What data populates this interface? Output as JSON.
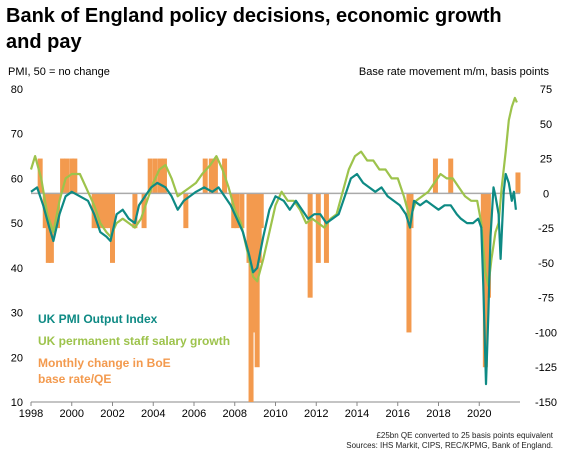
{
  "chart_data": {
    "type": "line",
    "title": "Bank of England policy decisions, economic growth and pay",
    "left_axis_label": "PMI, 50 = no change",
    "right_axis_label": "Base rate movement m/m, basis points",
    "x_ticks": [
      "1998",
      "2000",
      "2002",
      "2004",
      "2006",
      "2008",
      "2010",
      "2012",
      "2014",
      "2016",
      "2018",
      "2020"
    ],
    "xlim": [
      1998,
      2022
    ],
    "left_ylim": [
      10,
      80
    ],
    "left_ticks": [
      "10",
      "20",
      "30",
      "40",
      "50",
      "60",
      "70",
      "80"
    ],
    "right_ylim": [
      -150,
      75
    ],
    "right_ticks": [
      "75",
      "50",
      "25",
      "0",
      "-25",
      "-50",
      "-75",
      "-100",
      "-125",
      "-150"
    ],
    "reference_line": {
      "axis": "right",
      "value": 0
    },
    "series": [
      {
        "name": "UK PMI Output Index",
        "axis": "left",
        "color": "#0e8a84",
        "points": [
          [
            1998.0,
            57
          ],
          [
            1998.3,
            58
          ],
          [
            1998.6,
            54
          ],
          [
            1998.9,
            49
          ],
          [
            1999.1,
            46
          ],
          [
            1999.4,
            52
          ],
          [
            1999.7,
            56
          ],
          [
            2000.0,
            57
          ],
          [
            2000.4,
            56
          ],
          [
            2000.8,
            55
          ],
          [
            2001.1,
            52
          ],
          [
            2001.4,
            48
          ],
          [
            2001.7,
            47
          ],
          [
            2001.9,
            46
          ],
          [
            2002.2,
            52
          ],
          [
            2002.5,
            53
          ],
          [
            2002.8,
            51
          ],
          [
            2003.1,
            50
          ],
          [
            2003.3,
            54
          ],
          [
            2003.6,
            56
          ],
          [
            2003.9,
            58
          ],
          [
            2004.2,
            59
          ],
          [
            2004.6,
            58
          ],
          [
            2004.9,
            56
          ],
          [
            2005.2,
            53
          ],
          [
            2005.5,
            55
          ],
          [
            2005.8,
            56
          ],
          [
            2006.1,
            57
          ],
          [
            2006.5,
            58
          ],
          [
            2006.9,
            57
          ],
          [
            2007.2,
            58
          ],
          [
            2007.5,
            56
          ],
          [
            2007.8,
            54
          ],
          [
            2008.1,
            51
          ],
          [
            2008.4,
            48
          ],
          [
            2008.7,
            43
          ],
          [
            2008.9,
            39
          ],
          [
            2009.1,
            40
          ],
          [
            2009.4,
            47
          ],
          [
            2009.7,
            53
          ],
          [
            2010.0,
            56
          ],
          [
            2010.4,
            55
          ],
          [
            2010.7,
            53
          ],
          [
            2011.0,
            55
          ],
          [
            2011.3,
            53
          ],
          [
            2011.6,
            51
          ],
          [
            2011.9,
            52
          ],
          [
            2012.2,
            52
          ],
          [
            2012.5,
            50
          ],
          [
            2012.8,
            51
          ],
          [
            2013.1,
            52
          ],
          [
            2013.4,
            56
          ],
          [
            2013.7,
            60
          ],
          [
            2014.0,
            61
          ],
          [
            2014.3,
            59
          ],
          [
            2014.6,
            58
          ],
          [
            2014.9,
            57
          ],
          [
            2015.2,
            58
          ],
          [
            2015.5,
            56
          ],
          [
            2015.8,
            55
          ],
          [
            2016.1,
            54
          ],
          [
            2016.4,
            52
          ],
          [
            2016.6,
            49
          ],
          [
            2016.8,
            55
          ],
          [
            2017.1,
            54
          ],
          [
            2017.4,
            55
          ],
          [
            2017.7,
            54
          ],
          [
            2018.0,
            53
          ],
          [
            2018.3,
            54
          ],
          [
            2018.6,
            54
          ],
          [
            2018.9,
            52
          ],
          [
            2019.1,
            51
          ],
          [
            2019.4,
            50
          ],
          [
            2019.7,
            50
          ],
          [
            2019.95,
            51
          ],
          [
            2020.1,
            49
          ],
          [
            2020.2,
            36
          ],
          [
            2020.33,
            14
          ],
          [
            2020.45,
            30
          ],
          [
            2020.55,
            47
          ],
          [
            2020.7,
            58
          ],
          [
            2020.8,
            56
          ],
          [
            2020.95,
            52
          ],
          [
            2021.05,
            42
          ],
          [
            2021.2,
            57
          ],
          [
            2021.3,
            61
          ],
          [
            2021.45,
            59
          ],
          [
            2021.6,
            55
          ],
          [
            2021.7,
            57
          ],
          [
            2021.8,
            53
          ]
        ]
      },
      {
        "name": "UK permanent staff salary growth",
        "axis": "left",
        "color": "#9dc34c",
        "points": [
          [
            1998.0,
            62
          ],
          [
            1998.2,
            65
          ],
          [
            1998.5,
            60
          ],
          [
            1998.8,
            52
          ],
          [
            1999.1,
            48
          ],
          [
            1999.4,
            55
          ],
          [
            1999.7,
            60
          ],
          [
            2000.0,
            61
          ],
          [
            2000.4,
            61
          ],
          [
            2000.8,
            57
          ],
          [
            2001.1,
            54
          ],
          [
            2001.4,
            50
          ],
          [
            2001.7,
            48
          ],
          [
            2001.9,
            47
          ],
          [
            2002.2,
            50
          ],
          [
            2002.5,
            51
          ],
          [
            2002.8,
            50
          ],
          [
            2003.1,
            49
          ],
          [
            2003.4,
            51
          ],
          [
            2003.7,
            55
          ],
          [
            2004.0,
            59
          ],
          [
            2004.3,
            62
          ],
          [
            2004.6,
            63
          ],
          [
            2004.9,
            60
          ],
          [
            2005.2,
            56
          ],
          [
            2005.5,
            57
          ],
          [
            2005.8,
            58
          ],
          [
            2006.1,
            59
          ],
          [
            2006.4,
            61
          ],
          [
            2006.8,
            63
          ],
          [
            2007.1,
            65
          ],
          [
            2007.4,
            62
          ],
          [
            2007.7,
            58
          ],
          [
            2008.0,
            53
          ],
          [
            2008.3,
            50
          ],
          [
            2008.6,
            44
          ],
          [
            2008.9,
            38
          ],
          [
            2009.1,
            37
          ],
          [
            2009.4,
            42
          ],
          [
            2009.7,
            48
          ],
          [
            2010.0,
            54
          ],
          [
            2010.3,
            57
          ],
          [
            2010.6,
            55
          ],
          [
            2010.9,
            55
          ],
          [
            2011.2,
            53
          ],
          [
            2011.5,
            50
          ],
          [
            2011.8,
            51
          ],
          [
            2012.1,
            50
          ],
          [
            2012.4,
            49
          ],
          [
            2012.7,
            51
          ],
          [
            2013.0,
            52
          ],
          [
            2013.3,
            57
          ],
          [
            2013.6,
            62
          ],
          [
            2013.9,
            65
          ],
          [
            2014.2,
            66
          ],
          [
            2014.5,
            64
          ],
          [
            2014.8,
            64
          ],
          [
            2015.1,
            62
          ],
          [
            2015.4,
            62
          ],
          [
            2015.7,
            60
          ],
          [
            2016.0,
            60
          ],
          [
            2016.3,
            56
          ],
          [
            2016.6,
            51
          ],
          [
            2016.9,
            55
          ],
          [
            2017.2,
            56
          ],
          [
            2017.5,
            57
          ],
          [
            2017.8,
            59
          ],
          [
            2018.1,
            61
          ],
          [
            2018.4,
            60
          ],
          [
            2018.7,
            60
          ],
          [
            2019.0,
            58
          ],
          [
            2019.3,
            56
          ],
          [
            2019.6,
            55
          ],
          [
            2019.9,
            55
          ],
          [
            2020.1,
            50
          ],
          [
            2020.3,
            39
          ],
          [
            2020.45,
            36
          ],
          [
            2020.6,
            42
          ],
          [
            2020.8,
            48
          ],
          [
            2020.95,
            50
          ],
          [
            2021.1,
            58
          ],
          [
            2021.3,
            66
          ],
          [
            2021.45,
            73
          ],
          [
            2021.6,
            76
          ],
          [
            2021.75,
            78
          ],
          [
            2021.85,
            77
          ]
        ]
      },
      {
        "name": "Monthly change in BoE base rate/QE",
        "axis": "right",
        "type": "bar",
        "color": "#f39a4e",
        "points": [
          [
            1998.45,
            25
          ],
          [
            1998.7,
            -25
          ],
          [
            1998.85,
            -50
          ],
          [
            1999.0,
            -50
          ],
          [
            1999.15,
            -25
          ],
          [
            1999.3,
            -25
          ],
          [
            1999.55,
            25
          ],
          [
            1999.75,
            25
          ],
          [
            2000.0,
            25
          ],
          [
            2000.15,
            25
          ],
          [
            2001.1,
            -25
          ],
          [
            2001.3,
            -25
          ],
          [
            2001.45,
            -25
          ],
          [
            2001.65,
            -25
          ],
          [
            2001.85,
            -25
          ],
          [
            2002.0,
            -50
          ],
          [
            2003.1,
            -25
          ],
          [
            2003.55,
            -25
          ],
          [
            2003.85,
            25
          ],
          [
            2004.1,
            25
          ],
          [
            2004.35,
            25
          ],
          [
            2004.55,
            25
          ],
          [
            2005.6,
            -25
          ],
          [
            2006.55,
            25
          ],
          [
            2006.85,
            25
          ],
          [
            2007.05,
            25
          ],
          [
            2007.5,
            25
          ],
          [
            2007.95,
            -25
          ],
          [
            2008.1,
            -25
          ],
          [
            2008.35,
            -25
          ],
          [
            2008.7,
            -50
          ],
          [
            2008.8,
            -150
          ],
          [
            2008.95,
            -100
          ],
          [
            2009.1,
            -125
          ],
          [
            2009.2,
            -50
          ],
          [
            2009.3,
            -25
          ],
          [
            2011.7,
            -75
          ],
          [
            2012.1,
            -50
          ],
          [
            2012.5,
            -50
          ],
          [
            2016.55,
            -100
          ],
          [
            2016.65,
            -25
          ],
          [
            2017.85,
            25
          ],
          [
            2018.6,
            25
          ],
          [
            2020.2,
            -25
          ],
          [
            2020.3,
            -125
          ],
          [
            2020.45,
            -75
          ],
          [
            2021.9,
            15
          ]
        ]
      }
    ],
    "legend": [
      "UK PMI Output Index",
      "UK permanent staff salary growth",
      "Monthly change in BoE base rate/QE"
    ],
    "legend_position": "lower-left",
    "notes": [
      "£25bn QE converted to 25 basis points equivalent",
      "Sources: IHS Markit, CIPS, REC/KPMG, Bank of England."
    ]
  }
}
